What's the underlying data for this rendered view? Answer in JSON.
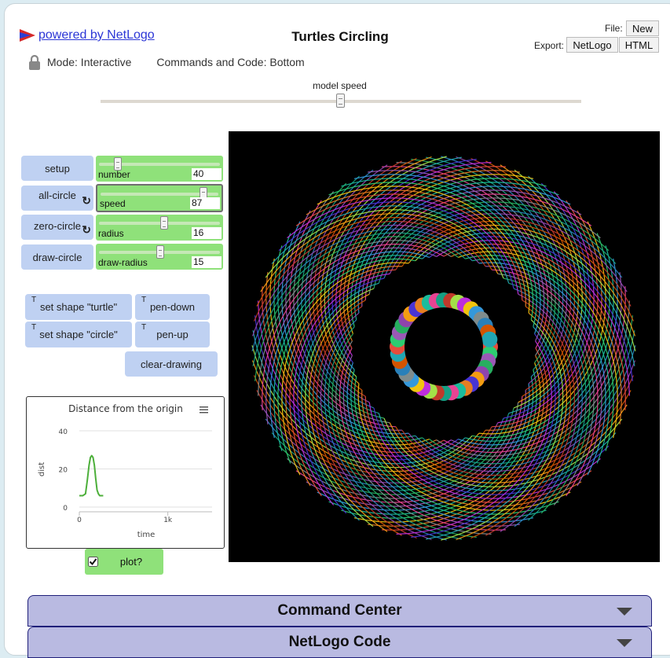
{
  "header": {
    "logo_text": "powered by NetLogo",
    "title": "Turtles Circling",
    "file_label": "File:",
    "file_new": "New",
    "export_label": "Export:",
    "export_netlogo": "NetLogo",
    "export_html": "HTML",
    "mode_text": "Mode: Interactive",
    "commands_text": "Commands and Code: Bottom"
  },
  "model_speed": {
    "label": "model speed",
    "value": 0.5
  },
  "buttons": {
    "setup": "setup",
    "all_circle": "all-circle",
    "zero_circle": "zero-circle",
    "draw_circle": "draw-circle",
    "set_shape_turtle": "set shape \"turtle\"",
    "set_shape_circle": "set shape \"circle\"",
    "pen_down": "pen-down",
    "pen_up": "pen-up",
    "clear_drawing": "clear-drawing",
    "turtle_mark": "T",
    "forever_icon": "↻"
  },
  "sliders": [
    {
      "name": "number",
      "value": "40",
      "fraction": 0.16
    },
    {
      "name": "speed",
      "value": "87",
      "fraction": 0.87
    },
    {
      "name": "radius",
      "value": "16",
      "fraction": 0.55
    },
    {
      "name": "draw-radius",
      "value": "15",
      "fraction": 0.52
    }
  ],
  "plot": {
    "title": "Distance from the origin",
    "ylabel": "dist",
    "xlabel": "time",
    "menu_icon": "hamburger-menu-icon"
  },
  "chart_data": {
    "type": "line",
    "title": "Distance from the origin",
    "xlabel": "time",
    "ylabel": "dist",
    "xlim": [
      0,
      1500
    ],
    "ylim": [
      0,
      45
    ],
    "x_ticks": [
      "0",
      "1k"
    ],
    "y_ticks": [
      "0",
      "20",
      "40"
    ],
    "grid": true,
    "series": [
      {
        "color": "#4caf3a",
        "x": [
          0,
          40,
          70,
          90,
          110,
          125,
          140,
          155,
          170,
          185,
          200,
          215,
          230,
          250,
          270
        ],
        "y": [
          6,
          6,
          7,
          14,
          22,
          26,
          27,
          26,
          22,
          15,
          9,
          7,
          6,
          6,
          6
        ]
      }
    ]
  },
  "switch": {
    "label": "plot?",
    "checked": true
  },
  "accordions": {
    "command_center": "Command Center",
    "netlogo_code": "NetLogo Code"
  },
  "view": {
    "turtle_count": 40
  }
}
